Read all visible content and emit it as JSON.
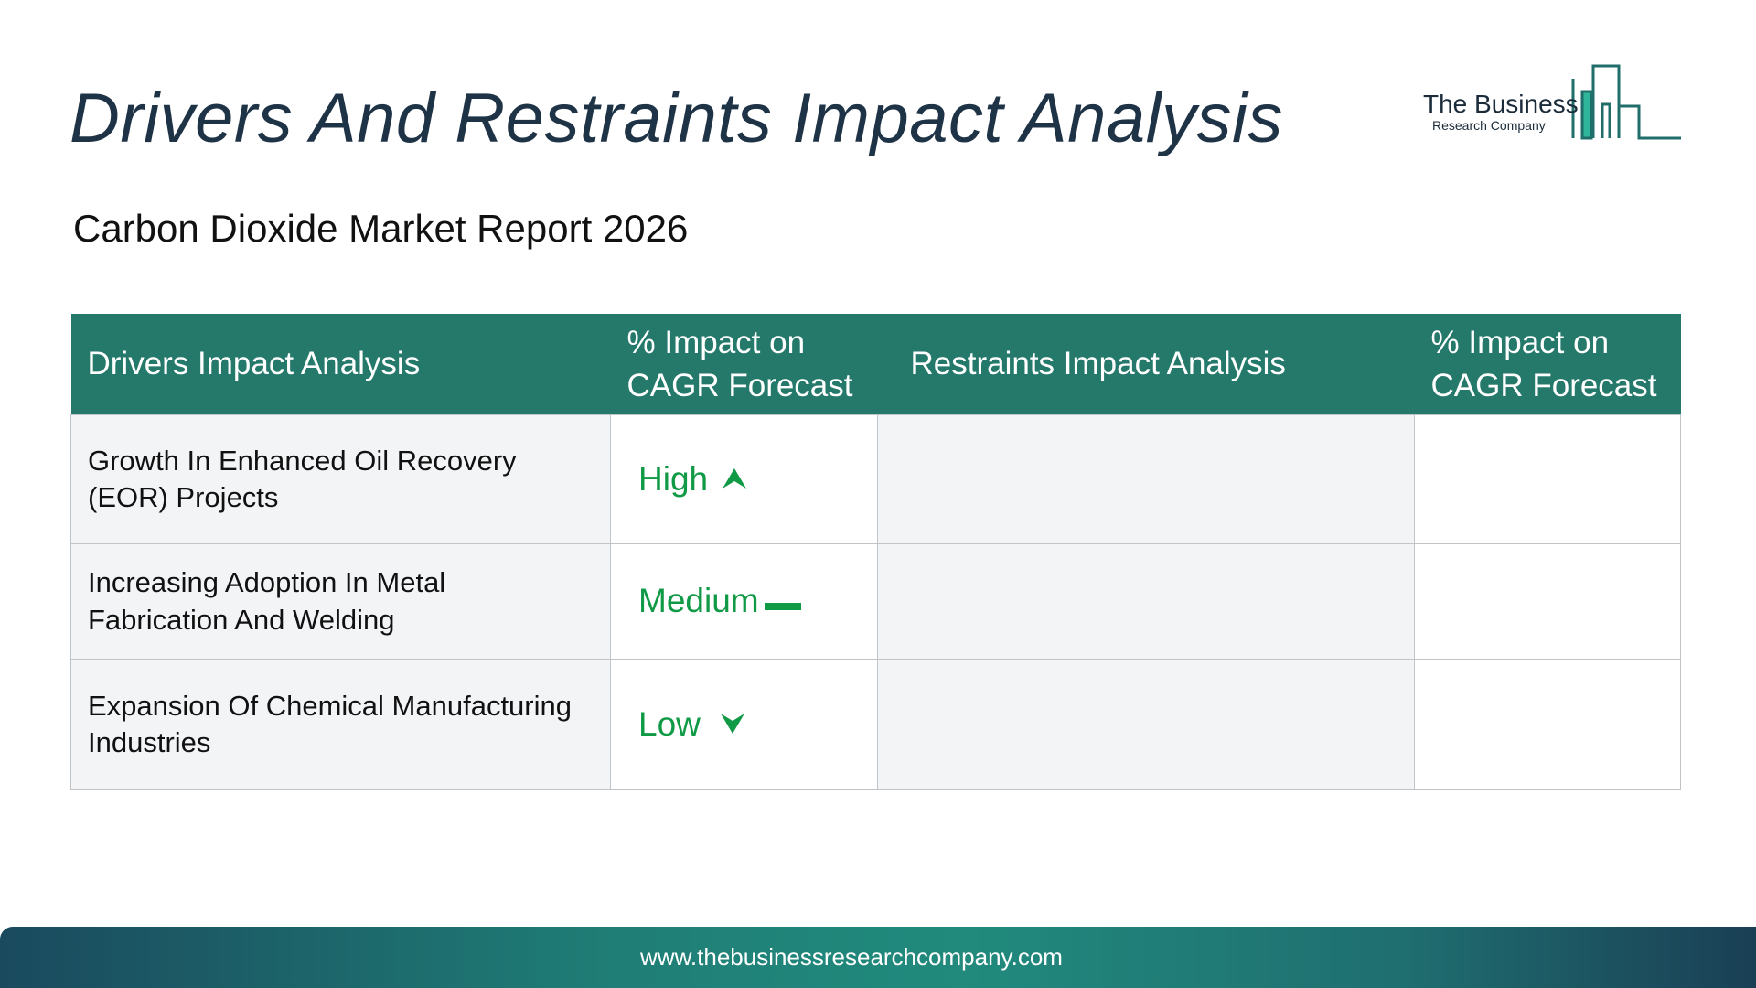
{
  "header": {
    "title": "Drivers And Restraints Impact Analysis",
    "subtitle": "Carbon Dioxide Market Report 2026"
  },
  "logo": {
    "name_main": "The Business",
    "name_sub": "Research Company",
    "color": "#1f7e76"
  },
  "table": {
    "columns": [
      "Drivers Impact Analysis",
      "% Impact on CAGR Forecast",
      "Restraints Impact Analysis",
      "% Impact on CAGR Forecast"
    ],
    "rows": [
      {
        "driver": "Growth In Enhanced Oil Recovery (EOR) Projects",
        "impact": "High",
        "impact_icon": "arrow-up-icon",
        "restraint": "",
        "restraint_impact": ""
      },
      {
        "driver": "Increasing Adoption In Metal Fabrication And Welding",
        "impact": "Medium",
        "impact_icon": "dash-icon",
        "restraint": "",
        "restraint_impact": ""
      },
      {
        "driver": "Expansion Of Chemical Manufacturing Industries",
        "impact": "Low",
        "impact_icon": "arrow-down-icon",
        "restraint": "",
        "restraint_impact": ""
      }
    ],
    "header_color": "#24796b",
    "impact_color": "#109a46"
  },
  "footer": {
    "url": "www.thebusinessresearchcompany.com"
  }
}
